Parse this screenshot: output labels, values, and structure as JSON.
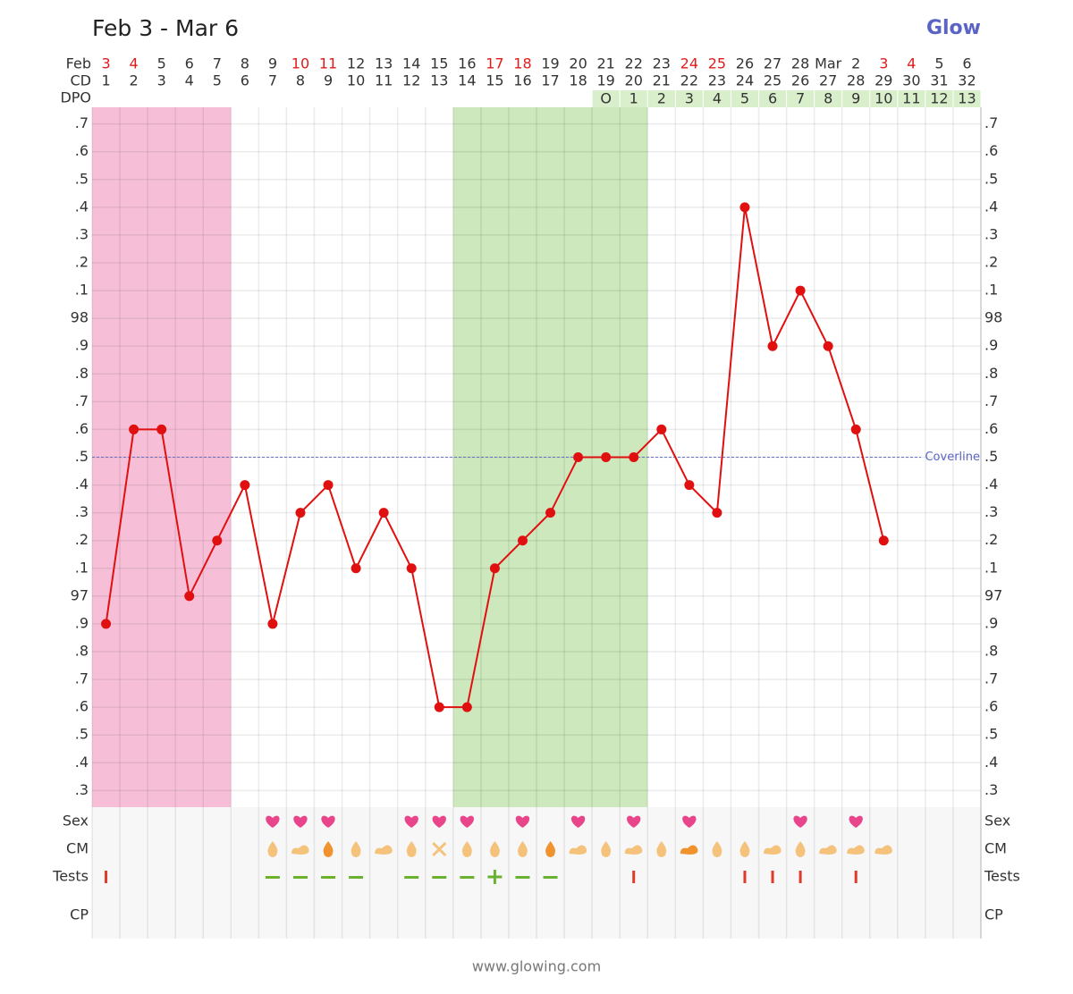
{
  "chart_data": {
    "type": "line",
    "title": "Feb 3 - Mar 6",
    "logo": "Glow",
    "footer": "www.glowing.com",
    "row_labels": {
      "date": "Feb",
      "cd": "CD",
      "dpo": "DPO"
    },
    "categories": [
      "3",
      "4",
      "5",
      "6",
      "7",
      "8",
      "9",
      "10",
      "11",
      "12",
      "13",
      "14",
      "15",
      "16",
      "17",
      "18",
      "19",
      "20",
      "21",
      "22",
      "23",
      "24",
      "25",
      "26",
      "27",
      "28",
      "Mar",
      "2",
      "3",
      "4",
      "5",
      "6"
    ],
    "weekend": [
      true,
      true,
      false,
      false,
      false,
      false,
      false,
      true,
      true,
      false,
      false,
      false,
      false,
      false,
      true,
      true,
      false,
      false,
      false,
      false,
      false,
      true,
      true,
      false,
      false,
      false,
      false,
      false,
      true,
      true,
      false,
      false
    ],
    "weekend_color": "#e01b1b",
    "cd": [
      1,
      2,
      3,
      4,
      5,
      6,
      7,
      8,
      9,
      10,
      11,
      12,
      13,
      14,
      15,
      16,
      17,
      18,
      19,
      20,
      21,
      22,
      23,
      24,
      25,
      26,
      27,
      28,
      29,
      30,
      31,
      32
    ],
    "dpo": [
      null,
      null,
      null,
      null,
      null,
      null,
      null,
      null,
      null,
      null,
      null,
      null,
      null,
      null,
      null,
      null,
      null,
      null,
      "O",
      1,
      2,
      3,
      4,
      5,
      6,
      7,
      8,
      9,
      10,
      11,
      12,
      13
    ],
    "dpo_color": "#d9efcb",
    "values": [
      96.9,
      97.6,
      97.6,
      97.0,
      97.2,
      97.4,
      96.9,
      97.3,
      97.4,
      97.1,
      97.3,
      97.1,
      96.6,
      96.6,
      97.1,
      97.2,
      97.3,
      97.5,
      97.5,
      97.5,
      97.6,
      97.4,
      97.3,
      98.4,
      97.9,
      98.1,
      97.9,
      97.6,
      97.2,
      null,
      null,
      null
    ],
    "color": "#e01010",
    "ylim": [
      96.24,
      98.76
    ],
    "yticks": [
      {
        "value": 98.7,
        "label": ".7"
      },
      {
        "value": 98.6,
        "label": ".6"
      },
      {
        "value": 98.5,
        "label": ".5"
      },
      {
        "value": 98.4,
        "label": ".4"
      },
      {
        "value": 98.3,
        "label": ".3"
      },
      {
        "value": 98.2,
        "label": ".2"
      },
      {
        "value": 98.1,
        "label": ".1"
      },
      98,
      {
        "value": 97.9,
        "label": ".9"
      },
      {
        "value": 97.8,
        "label": ".8"
      },
      {
        "value": 97.7,
        "label": ".7"
      },
      {
        "value": 97.6,
        "label": ".6"
      },
      {
        "value": 97.5,
        "label": ".5"
      },
      {
        "value": 97.4,
        "label": ".4"
      },
      {
        "value": 97.3,
        "label": ".3"
      },
      {
        "value": 97.2,
        "label": ".2"
      },
      {
        "value": 97.1,
        "label": ".1"
      },
      97,
      {
        "value": 96.9,
        "label": ".9"
      },
      {
        "value": 96.8,
        "label": ".8"
      },
      {
        "value": 96.7,
        "label": ".7"
      },
      {
        "value": 96.6,
        "label": ".6"
      },
      {
        "value": 96.5,
        "label": ".5"
      },
      {
        "value": 96.4,
        "label": ".4"
      },
      {
        "value": 96.3,
        "label": ".3"
      }
    ],
    "grid": true,
    "coverline": {
      "label": "Coverline",
      "value": 97.5,
      "color": "#6a73c8"
    },
    "period": {
      "days": [
        1,
        5
      ],
      "color": "#f6bfd7"
    },
    "fertile": {
      "days": [
        14,
        20
      ],
      "color": "#cde8bc"
    },
    "tracking_rows": [
      "Sex",
      "CM",
      "Tests",
      "CP"
    ]
  }
}
